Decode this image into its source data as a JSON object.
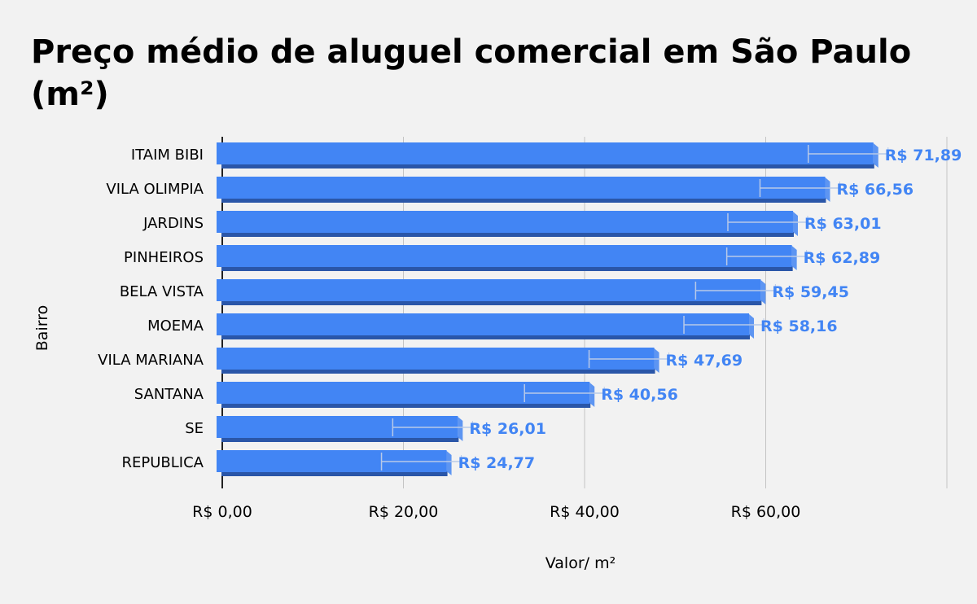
{
  "chart_data": {
    "type": "bar",
    "orientation": "horizontal",
    "title": "Preço médio de aluguel comercial em São Paulo (m²)",
    "xlabel": "Valor/ m²",
    "ylabel": "Bairro",
    "categories": [
      "ITAIM BIBI",
      "VILA OLIMPIA",
      "JARDINS",
      "PINHEIROS",
      "BELA VISTA",
      "MOEMA",
      "VILA MARIANA",
      "SANTANA",
      "SE",
      "REPUBLICA"
    ],
    "values": [
      71.89,
      66.56,
      63.01,
      62.89,
      59.45,
      58.16,
      47.69,
      40.56,
      26.01,
      24.77
    ],
    "data_labels": [
      "R$ 71,89",
      "R$ 66,56",
      "R$ 63,01",
      "R$ 62,89",
      "R$ 59,45",
      "R$ 58,16",
      "R$ 47,69",
      "R$ 40,56",
      "R$ 26,01",
      "R$ 24,77"
    ],
    "xticks": [
      {
        "value": 0,
        "label": "R$ 0,00"
      },
      {
        "value": 20,
        "label": "R$ 20,00"
      },
      {
        "value": 40,
        "label": "R$ 40,00"
      },
      {
        "value": 60,
        "label": "R$ 60,00"
      }
    ],
    "xlim": [
      0,
      80
    ],
    "grid": true,
    "legend": "none",
    "colors": {
      "bar": "#4285f4",
      "bar_side": "#5d95f2",
      "bar_shadow": "#2a56a8",
      "label": "#4285f4",
      "grid": "#c4c4c4",
      "background": "#f2f2f2"
    }
  }
}
